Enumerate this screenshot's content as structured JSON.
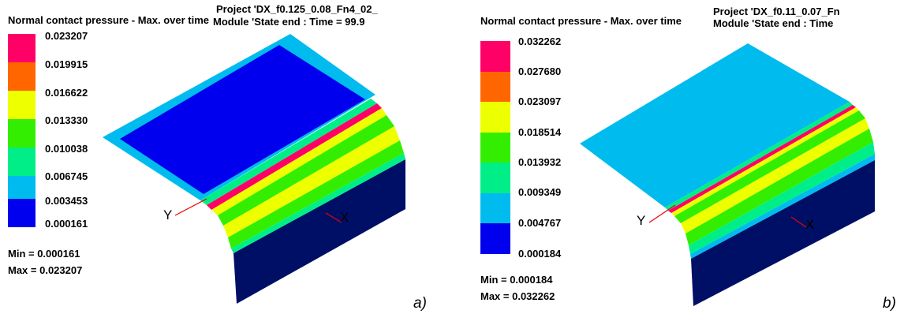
{
  "panels": [
    {
      "id": "a",
      "legend_title": "Normal contact pressure - Max. over time",
      "project_line1": "Project 'DX_f0.125_0.08_Fn4_02_",
      "project_line2": "Module 'State end : Time = 99.9",
      "legend": [
        {
          "value": "0.023207",
          "color": "#ff0066"
        },
        {
          "value": "0.019915",
          "color": "#ff6600"
        },
        {
          "value": "0.016622",
          "color": "#eeff00"
        },
        {
          "value": "0.013330",
          "color": "#33ee00"
        },
        {
          "value": "0.010038",
          "color": "#00ee88"
        },
        {
          "value": "0.006745",
          "color": "#00bbee"
        },
        {
          "value": "0.003453",
          "color": "#0000ee"
        },
        {
          "value": "0.000161",
          "color": ""
        }
      ],
      "min_text": "Min =  0.000161",
      "max_text": "Max =  0.023207",
      "axis_y": "Y",
      "axis_x": "X",
      "caption": "a)"
    },
    {
      "id": "b",
      "legend_title": "Normal contact pressure - Max. over time",
      "project_line1": "Project 'DX_f0.11_0.07_Fn",
      "project_line2": "Module 'State end : Time",
      "legend": [
        {
          "value": "0.032262",
          "color": "#ff0066"
        },
        {
          "value": "0.027680",
          "color": "#ff6600"
        },
        {
          "value": "0.023097",
          "color": "#eeff00"
        },
        {
          "value": "0.018514",
          "color": "#33ee00"
        },
        {
          "value": "0.013932",
          "color": "#00ee88"
        },
        {
          "value": "0.009349",
          "color": "#00bbee"
        },
        {
          "value": "0.004767",
          "color": "#0000ee"
        },
        {
          "value": "0.000184",
          "color": ""
        }
      ],
      "min_text": "Min =  0.000184",
      "max_text": "Max =  0.032262",
      "axis_y": "Y",
      "axis_x": "X",
      "caption": "b)"
    }
  ]
}
